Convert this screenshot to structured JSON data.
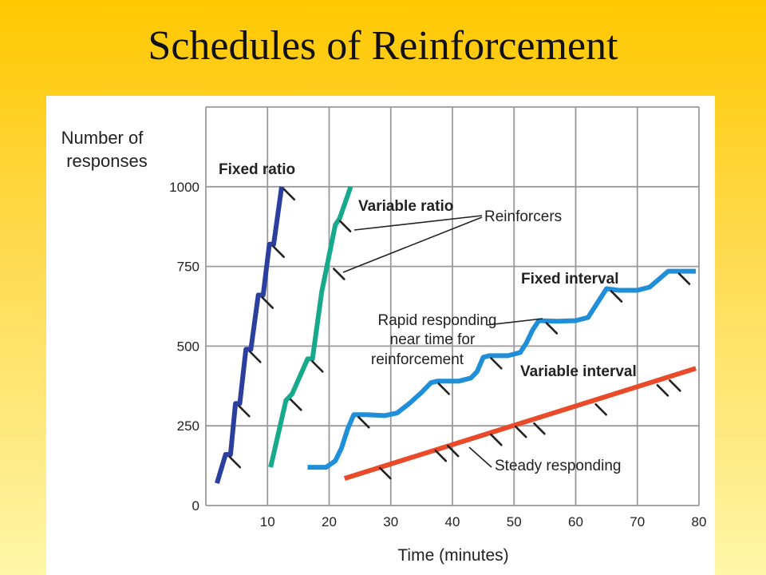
{
  "slide": {
    "title": "Schedules of Reinforcement"
  },
  "chart_data": {
    "type": "line",
    "title": "",
    "xlabel": "Time (minutes)",
    "ylabel": [
      "Number of",
      "responses"
    ],
    "xlim": [
      0,
      80
    ],
    "ylim": [
      0,
      1250
    ],
    "x_ticks": [
      10,
      20,
      30,
      40,
      50,
      60,
      70,
      80
    ],
    "y_ticks": [
      0,
      250,
      500,
      750,
      1000
    ],
    "x_grid": [
      0,
      10,
      20,
      30,
      40,
      50,
      60,
      70,
      80
    ],
    "y_grid": [
      0,
      250,
      500,
      750,
      1000,
      1250
    ],
    "grid": true,
    "series": [
      {
        "name": "Fixed ratio",
        "color": "#2b3f9e",
        "points": [
          [
            1.8,
            70
          ],
          [
            3.2,
            160
          ],
          [
            4,
            160
          ],
          [
            4.8,
            320
          ],
          [
            5.5,
            320
          ],
          [
            6.5,
            490
          ],
          [
            7.3,
            490
          ],
          [
            8.5,
            660
          ],
          [
            9.3,
            660
          ],
          [
            10.3,
            820
          ],
          [
            11,
            820
          ],
          [
            12.3,
            1000
          ]
        ],
        "reinforcers_at": [
          [
            3.6,
            160
          ],
          [
            5.1,
            320
          ],
          [
            6.9,
            490
          ],
          [
            8.9,
            660
          ],
          [
            10.7,
            820
          ],
          [
            12.4,
            1000
          ]
        ]
      },
      {
        "name": "Variable ratio",
        "color": "#17a98c",
        "points": [
          [
            10.5,
            120
          ],
          [
            13,
            330
          ],
          [
            14,
            350
          ],
          [
            16.5,
            460
          ],
          [
            17.3,
            460
          ],
          [
            18.8,
            670
          ],
          [
            21,
            880
          ],
          [
            21.7,
            900
          ],
          [
            23.5,
            1000
          ]
        ],
        "reinforcers_at": [
          [
            13.5,
            340
          ],
          [
            17,
            460
          ],
          [
            20.5,
            750
          ],
          [
            21.5,
            900
          ]
        ]
      },
      {
        "name": "Fixed interval",
        "color": "#1e8fd8",
        "points": [
          [
            16.5,
            120
          ],
          [
            19.5,
            120
          ],
          [
            21,
            140
          ],
          [
            22,
            180
          ],
          [
            23,
            240
          ],
          [
            24,
            285
          ],
          [
            26,
            285
          ],
          [
            29,
            282
          ],
          [
            31,
            290
          ],
          [
            33,
            320
          ],
          [
            35,
            355
          ],
          [
            36.5,
            385
          ],
          [
            37.5,
            390
          ],
          [
            41,
            390
          ],
          [
            43,
            400
          ],
          [
            44,
            420
          ],
          [
            45,
            465
          ],
          [
            46,
            470
          ],
          [
            49,
            470
          ],
          [
            51,
            480
          ],
          [
            52,
            510
          ],
          [
            53,
            550
          ],
          [
            54,
            580
          ],
          [
            57,
            578
          ],
          [
            60,
            580
          ],
          [
            62,
            590
          ],
          [
            63,
            620
          ],
          [
            64,
            650
          ],
          [
            65,
            680
          ],
          [
            67,
            675
          ],
          [
            70,
            675
          ],
          [
            72,
            685
          ],
          [
            73.5,
            710
          ],
          [
            75,
            735
          ],
          [
            79.5,
            735
          ]
        ],
        "reinforcers_at": [
          [
            24.5,
            285
          ],
          [
            37.5,
            390
          ],
          [
            46,
            470
          ],
          [
            55,
            580
          ],
          [
            65.5,
            680
          ],
          [
            76.5,
            735
          ]
        ]
      },
      {
        "name": "Variable interval",
        "color": "#e84a2a",
        "points": [
          [
            22.5,
            85
          ],
          [
            79.5,
            430
          ]
        ],
        "reinforcers_at": [
          [
            28,
            125
          ],
          [
            37,
            180
          ],
          [
            39,
            195
          ],
          [
            46,
            230
          ],
          [
            50,
            255
          ],
          [
            53,
            265
          ],
          [
            63,
            325
          ],
          [
            73,
            385
          ],
          [
            75,
            400
          ]
        ]
      }
    ],
    "annotations": [
      {
        "name": "reinforcers-label",
        "text": "Reinforcers"
      },
      {
        "name": "fi-note",
        "lines": [
          "Rapid responding",
          "near time for",
          "reinforcement"
        ]
      },
      {
        "name": "vi-note",
        "text": "Steady responding"
      }
    ]
  }
}
